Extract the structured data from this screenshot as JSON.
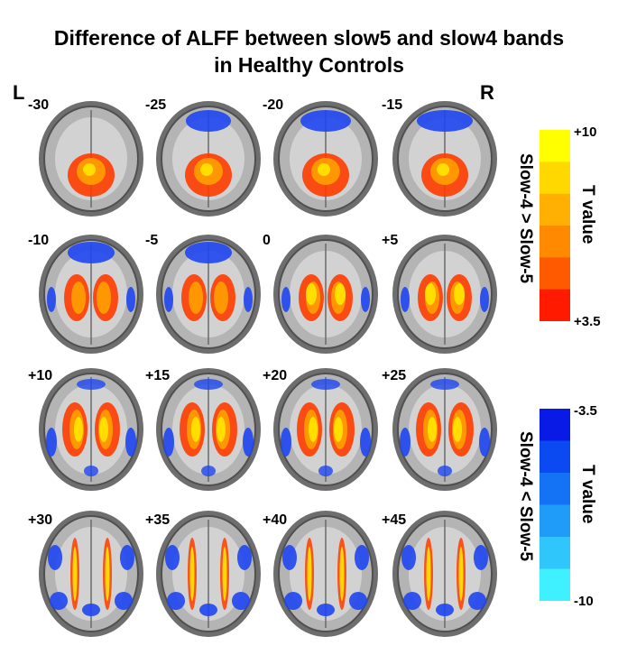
{
  "title": {
    "line1": "Difference of ALFF between slow5 and slow4 bands",
    "line2": "in Healthy Controls"
  },
  "orientation": {
    "left": "L",
    "right": "R"
  },
  "slices": [
    {
      "z": "-30"
    },
    {
      "z": "-25"
    },
    {
      "z": "-20"
    },
    {
      "z": "-15"
    },
    {
      "z": "-10"
    },
    {
      "z": "-5"
    },
    {
      "z": "0"
    },
    {
      "z": "+5"
    },
    {
      "z": "+10"
    },
    {
      "z": "+15"
    },
    {
      "z": "+20"
    },
    {
      "z": "+25"
    },
    {
      "z": "+30"
    },
    {
      "z": "+35"
    },
    {
      "z": "+40"
    },
    {
      "z": "+45"
    }
  ],
  "colorbar_positive": {
    "top_label": "+10",
    "bottom_label": "+3.5",
    "title_t": "T value",
    "title_contrast": "Slow-4 > Slow-5",
    "colors": [
      "#ffff00",
      "#ffd800",
      "#ffb000",
      "#ff8a00",
      "#ff5a00",
      "#ff1a00"
    ]
  },
  "colorbar_negative": {
    "top_label": "-3.5",
    "bottom_label": "-10",
    "title_t": "T value",
    "title_contrast": "Slow-4 < Slow-5",
    "colors": [
      "#0a1ae6",
      "#0a4af0",
      "#1473f5",
      "#1e9cf8",
      "#2ec6fb",
      "#3ff0ff"
    ]
  },
  "colors": {
    "hot": "#ff3c00",
    "warm": "#ffa000",
    "yellow": "#ffe600",
    "blue": "#1e46f0",
    "light_blue": "#3c8cff"
  }
}
